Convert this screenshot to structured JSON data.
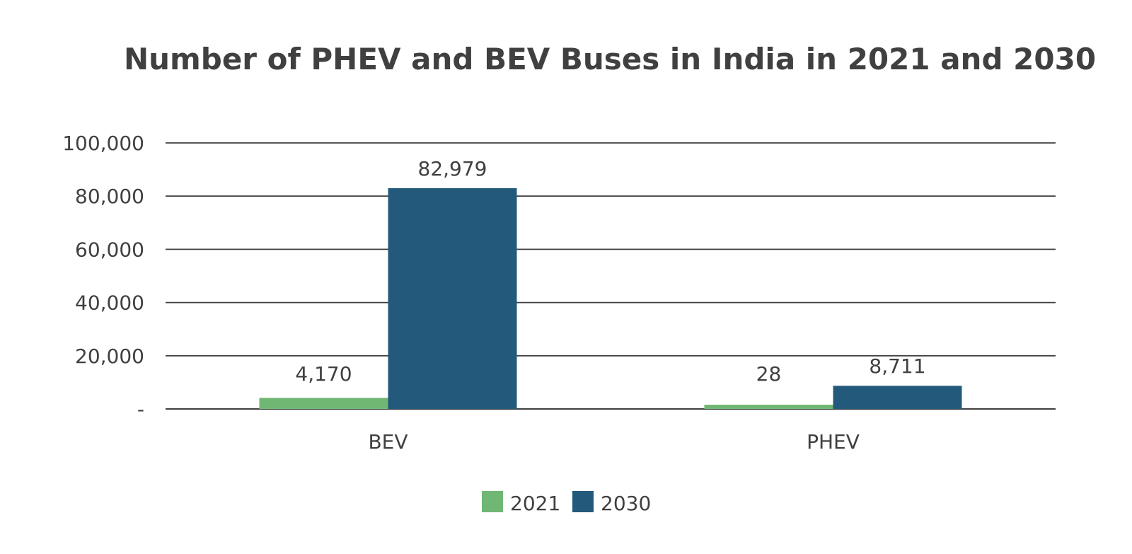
{
  "chart_data": {
    "type": "bar",
    "title": "Number of PHEV and BEV Buses in India in 2021 and 2030",
    "xlabel": "",
    "ylabel": "",
    "categories": [
      "BEV",
      "PHEV"
    ],
    "series": [
      {
        "name": "2021",
        "values": [
          4170,
          28
        ],
        "labels": [
          "4,170",
          "28"
        ],
        "color": "#70b774"
      },
      {
        "name": "2030",
        "values": [
          82979,
          8711
        ],
        "labels": [
          "82,979",
          "8,711"
        ],
        "color": "#235a7c"
      }
    ],
    "ylim": [
      0,
      100000
    ],
    "yticks": [
      0,
      20000,
      40000,
      60000,
      80000,
      100000
    ],
    "ytick_labels": [
      "-",
      "20,000",
      "40,000",
      "60,000",
      "80,000",
      "100,000"
    ],
    "grid": true,
    "legend": "bottom-center",
    "colors": {
      "text": "#404040",
      "gridline": "#404040"
    }
  }
}
